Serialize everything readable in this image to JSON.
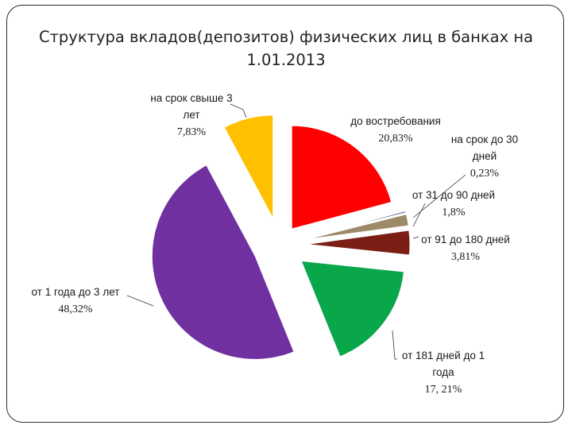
{
  "chart_data": {
    "type": "pie",
    "title_line1": "Структура вкладов(депозитов) физических лиц в банках на",
    "title_line2": "1.01.2013",
    "slices": [
      {
        "name_lines": [
          "до востребования"
        ],
        "value_label": "20,83%",
        "value": 20.83,
        "color": "#ff0000"
      },
      {
        "name_lines": [
          "на срок до 30",
          "дней"
        ],
        "value_label": "0,23%",
        "value": 0.23,
        "color": "#1f3a7a"
      },
      {
        "name_lines": [
          "от 31 до 90 дней"
        ],
        "value_label": "1,8%",
        "value": 1.8,
        "color": "#9c8a68"
      },
      {
        "name_lines": [
          "от 91 до 180 дней"
        ],
        "value_label": "3,81%",
        "value": 3.81,
        "color": "#7a1e16"
      },
      {
        "name_lines": [
          "от 181 дней до 1",
          "года"
        ],
        "value_label": "17, 21%",
        "value": 17.21,
        "color": "#0aa64a"
      },
      {
        "name_lines": [
          "от 1 года до 3 лет"
        ],
        "value_label": "48,32%",
        "value": 48.32,
        "color": "#7030a0"
      },
      {
        "name_lines": [
          "на срок свыше 3",
          "лет"
        ],
        "value_label": "7,83%",
        "value": 7.83,
        "color": "#ffc000"
      }
    ]
  }
}
